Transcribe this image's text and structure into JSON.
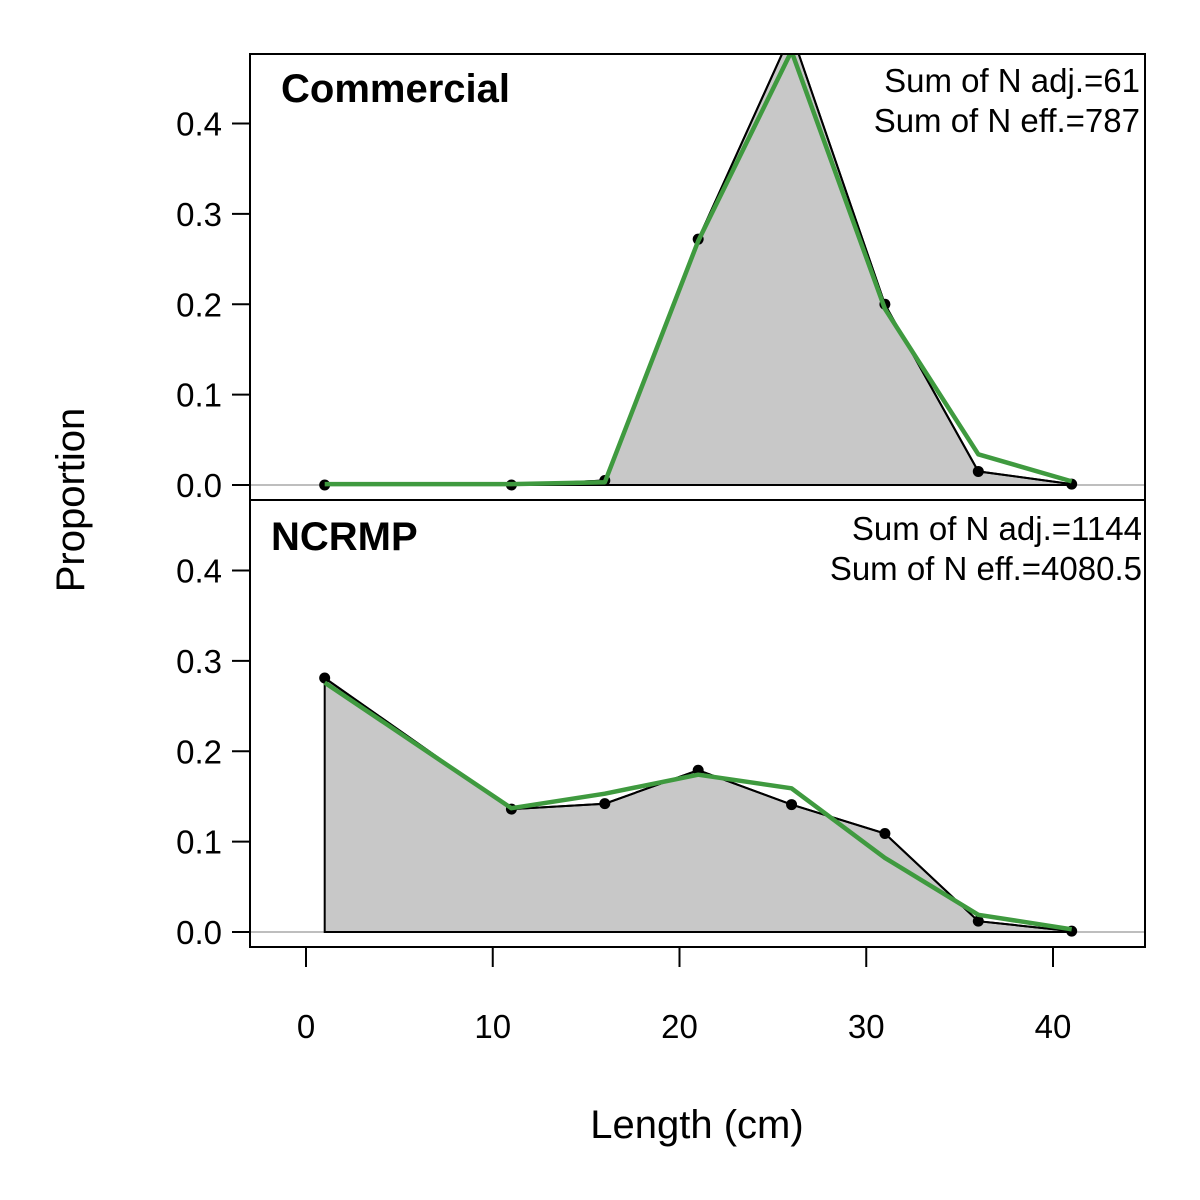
{
  "chart_data": {
    "type": "area",
    "xlabel": "Length (cm)",
    "ylabel": "Proportion",
    "xlim": [
      -3,
      45
    ],
    "ylim": [
      0,
      0.475
    ],
    "x_ticks": [
      0,
      10,
      20,
      30,
      40
    ],
    "y_ticks": [
      0.0,
      0.1,
      0.2,
      0.3,
      0.4
    ],
    "y_tick_labels": [
      "0.0",
      "0.1",
      "0.2",
      "0.3",
      "0.4"
    ],
    "colors": {
      "observed_fill": "#c8c8c8",
      "observed_line": "#000000",
      "expected_line": "#3f9a3f",
      "zero_line": "#bebebe"
    },
    "panels": [
      {
        "title": "Commercial",
        "annotations": [
          "Sum of N adj.=61",
          "Sum of N eff.=787"
        ],
        "x": [
          1,
          11,
          16,
          21,
          26,
          31,
          36,
          41
        ],
        "observed": [
          0.0,
          0.0,
          0.005,
          0.272,
          0.5,
          0.2,
          0.015,
          0.001
        ],
        "expected": [
          0.001,
          0.001,
          0.003,
          0.27,
          0.48,
          0.195,
          0.034,
          0.004
        ]
      },
      {
        "title": "NCRMP",
        "annotations": [
          "Sum of N adj.=1144",
          "Sum of N eff.=4080.5"
        ],
        "x": [
          1,
          11,
          16,
          21,
          26,
          31,
          36,
          41
        ],
        "observed": [
          0.281,
          0.136,
          0.142,
          0.179,
          0.141,
          0.109,
          0.012,
          0.001
        ],
        "expected": [
          0.276,
          0.137,
          0.153,
          0.174,
          0.159,
          0.082,
          0.019,
          0.003
        ]
      }
    ]
  }
}
